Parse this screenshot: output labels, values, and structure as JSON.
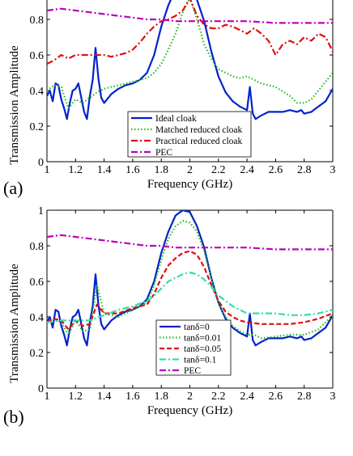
{
  "chart_data": [
    {
      "type": "line",
      "panel_label": "(a)",
      "xlabel": "Frequency (GHz)",
      "ylabel": "Transmission Amplitude",
      "xlim": [
        1,
        3
      ],
      "ylim": [
        0,
        1
      ],
      "xticks": [
        "1",
        "1.2",
        "1.4",
        "1.6",
        "1.8",
        "2",
        "2.2",
        "2.4",
        "2.6",
        "2.8",
        "3"
      ],
      "yticks": [
        "0",
        "0.2",
        "0.4",
        "0.6",
        "0.8"
      ],
      "legend_position": "bottom-center",
      "series": [
        {
          "name": "Ideal cloak",
          "color": "#0022cc",
          "style": "solid",
          "x": [
            1.0,
            1.02,
            1.04,
            1.06,
            1.08,
            1.1,
            1.12,
            1.14,
            1.16,
            1.18,
            1.2,
            1.22,
            1.24,
            1.26,
            1.28,
            1.3,
            1.32,
            1.34,
            1.36,
            1.38,
            1.4,
            1.45,
            1.5,
            1.55,
            1.6,
            1.65,
            1.7,
            1.75,
            1.8,
            1.85,
            1.9,
            1.95,
            2.0,
            2.05,
            2.1,
            2.15,
            2.2,
            2.25,
            2.3,
            2.35,
            2.4,
            2.42,
            2.44,
            2.46,
            2.48,
            2.5,
            2.55,
            2.6,
            2.65,
            2.7,
            2.75,
            2.78,
            2.8,
            2.85,
            2.9,
            2.95,
            3.0
          ],
          "y": [
            0.37,
            0.4,
            0.34,
            0.44,
            0.43,
            0.35,
            0.3,
            0.24,
            0.33,
            0.4,
            0.41,
            0.44,
            0.36,
            0.28,
            0.24,
            0.37,
            0.46,
            0.64,
            0.47,
            0.36,
            0.33,
            0.38,
            0.41,
            0.43,
            0.44,
            0.46,
            0.5,
            0.6,
            0.76,
            0.88,
            0.97,
            1.0,
            0.99,
            0.91,
            0.79,
            0.62,
            0.48,
            0.39,
            0.34,
            0.31,
            0.29,
            0.42,
            0.27,
            0.24,
            0.25,
            0.26,
            0.28,
            0.28,
            0.28,
            0.29,
            0.28,
            0.29,
            0.27,
            0.28,
            0.31,
            0.34,
            0.41
          ]
        },
        {
          "name": "Matched reduced cloak",
          "color": "#22bb22",
          "style": "dotted",
          "x": [
            1.0,
            1.05,
            1.1,
            1.15,
            1.2,
            1.25,
            1.3,
            1.35,
            1.4,
            1.5,
            1.6,
            1.7,
            1.75,
            1.8,
            1.85,
            1.9,
            1.95,
            2.0,
            2.05,
            2.1,
            2.15,
            2.2,
            2.25,
            2.3,
            2.35,
            2.4,
            2.45,
            2.5,
            2.6,
            2.7,
            2.75,
            2.8,
            2.85,
            2.9,
            2.95,
            3.0
          ],
          "y": [
            0.4,
            0.43,
            0.42,
            0.3,
            0.35,
            0.33,
            0.36,
            0.39,
            0.41,
            0.43,
            0.45,
            0.47,
            0.5,
            0.55,
            0.63,
            0.72,
            0.84,
            0.92,
            0.8,
            0.66,
            0.58,
            0.52,
            0.5,
            0.48,
            0.47,
            0.48,
            0.46,
            0.44,
            0.42,
            0.37,
            0.33,
            0.33,
            0.35,
            0.4,
            0.45,
            0.5
          ]
        },
        {
          "name": "Practical reduced cloak",
          "color": "#dd1111",
          "style": "dashdot",
          "x": [
            1.0,
            1.05,
            1.1,
            1.15,
            1.2,
            1.25,
            1.3,
            1.35,
            1.4,
            1.45,
            1.5,
            1.55,
            1.6,
            1.65,
            1.7,
            1.75,
            1.8,
            1.85,
            1.9,
            1.95,
            2.0,
            2.05,
            2.1,
            2.15,
            2.2,
            2.25,
            2.3,
            2.35,
            2.4,
            2.45,
            2.5,
            2.55,
            2.6,
            2.65,
            2.7,
            2.75,
            2.8,
            2.85,
            2.9,
            2.95,
            3.0
          ],
          "y": [
            0.55,
            0.57,
            0.6,
            0.58,
            0.6,
            0.6,
            0.6,
            0.6,
            0.6,
            0.59,
            0.6,
            0.61,
            0.63,
            0.67,
            0.72,
            0.76,
            0.79,
            0.8,
            0.82,
            0.85,
            0.92,
            0.82,
            0.77,
            0.75,
            0.75,
            0.77,
            0.76,
            0.74,
            0.72,
            0.75,
            0.72,
            0.68,
            0.6,
            0.66,
            0.68,
            0.66,
            0.7,
            0.68,
            0.72,
            0.7,
            0.62
          ]
        },
        {
          "name": "PEC",
          "color": "#bb00bb",
          "style": "dashdot",
          "x": [
            1.0,
            1.1,
            1.2,
            1.3,
            1.4,
            1.5,
            1.6,
            1.7,
            1.8,
            1.9,
            2.0,
            2.2,
            2.4,
            2.6,
            2.8,
            3.0
          ],
          "y": [
            0.85,
            0.86,
            0.85,
            0.84,
            0.83,
            0.82,
            0.81,
            0.8,
            0.8,
            0.79,
            0.79,
            0.79,
            0.79,
            0.78,
            0.78,
            0.78
          ]
        }
      ]
    },
    {
      "type": "line",
      "panel_label": "(b)",
      "xlabel": "Frequency (GHz)",
      "ylabel": "Transmission Amplitude",
      "xlim": [
        1,
        3
      ],
      "ylim": [
        0,
        1
      ],
      "xticks": [
        "1",
        "1.2",
        "1.4",
        "1.6",
        "1.8",
        "2",
        "2.2",
        "2.4",
        "2.6",
        "2.8",
        "3"
      ],
      "yticks": [
        "0",
        "0.2",
        "0.4",
        "0.6",
        "0.8",
        "1"
      ],
      "legend_position": "bottom-center",
      "series": [
        {
          "name": "tanδ=0",
          "color": "#0022cc",
          "style": "solid",
          "x": [
            1.0,
            1.02,
            1.04,
            1.06,
            1.08,
            1.1,
            1.12,
            1.14,
            1.16,
            1.18,
            1.2,
            1.22,
            1.24,
            1.26,
            1.28,
            1.3,
            1.32,
            1.34,
            1.36,
            1.38,
            1.4,
            1.45,
            1.5,
            1.55,
            1.6,
            1.65,
            1.7,
            1.75,
            1.8,
            1.85,
            1.9,
            1.95,
            2.0,
            2.05,
            2.1,
            2.15,
            2.2,
            2.25,
            2.3,
            2.35,
            2.4,
            2.42,
            2.44,
            2.46,
            2.48,
            2.5,
            2.55,
            2.6,
            2.65,
            2.7,
            2.75,
            2.78,
            2.8,
            2.85,
            2.9,
            2.95,
            3.0
          ],
          "y": [
            0.37,
            0.4,
            0.34,
            0.44,
            0.43,
            0.35,
            0.3,
            0.24,
            0.33,
            0.4,
            0.41,
            0.44,
            0.36,
            0.28,
            0.24,
            0.37,
            0.46,
            0.64,
            0.47,
            0.36,
            0.33,
            0.38,
            0.41,
            0.43,
            0.44,
            0.46,
            0.5,
            0.6,
            0.76,
            0.88,
            0.97,
            1.0,
            0.99,
            0.91,
            0.79,
            0.62,
            0.48,
            0.39,
            0.34,
            0.31,
            0.29,
            0.42,
            0.27,
            0.24,
            0.25,
            0.26,
            0.28,
            0.28,
            0.28,
            0.29,
            0.28,
            0.29,
            0.27,
            0.28,
            0.31,
            0.34,
            0.41
          ]
        },
        {
          "name": "tanδ=0.01",
          "color": "#22bb22",
          "style": "dotted",
          "x": [
            1.0,
            1.05,
            1.1,
            1.15,
            1.2,
            1.25,
            1.3,
            1.35,
            1.4,
            1.5,
            1.6,
            1.7,
            1.75,
            1.8,
            1.85,
            1.9,
            1.95,
            2.0,
            2.05,
            2.1,
            2.15,
            2.2,
            2.25,
            2.3,
            2.35,
            2.4,
            2.45,
            2.5,
            2.6,
            2.7,
            2.8,
            2.9,
            3.0
          ],
          "y": [
            0.37,
            0.39,
            0.37,
            0.3,
            0.38,
            0.32,
            0.33,
            0.58,
            0.42,
            0.4,
            0.44,
            0.48,
            0.58,
            0.72,
            0.84,
            0.91,
            0.94,
            0.93,
            0.88,
            0.77,
            0.62,
            0.48,
            0.4,
            0.35,
            0.32,
            0.3,
            0.3,
            0.28,
            0.29,
            0.3,
            0.3,
            0.33,
            0.41
          ]
        },
        {
          "name": "tanδ=0.05",
          "color": "#dd1111",
          "style": "dashed",
          "x": [
            1.0,
            1.05,
            1.1,
            1.15,
            1.2,
            1.25,
            1.3,
            1.35,
            1.4,
            1.5,
            1.6,
            1.7,
            1.75,
            1.8,
            1.85,
            1.9,
            1.95,
            2.0,
            2.05,
            2.1,
            2.15,
            2.2,
            2.25,
            2.3,
            2.35,
            2.4,
            2.5,
            2.6,
            2.7,
            2.8,
            2.9,
            3.0
          ],
          "y": [
            0.37,
            0.39,
            0.38,
            0.33,
            0.38,
            0.35,
            0.36,
            0.47,
            0.42,
            0.42,
            0.45,
            0.47,
            0.53,
            0.62,
            0.69,
            0.73,
            0.76,
            0.77,
            0.75,
            0.68,
            0.58,
            0.49,
            0.43,
            0.4,
            0.38,
            0.37,
            0.36,
            0.36,
            0.36,
            0.37,
            0.39,
            0.42
          ]
        },
        {
          "name": "tanδ=0.1",
          "color": "#33ddaa",
          "style": "dashdot",
          "x": [
            1.0,
            1.1,
            1.2,
            1.3,
            1.4,
            1.5,
            1.6,
            1.7,
            1.75,
            1.8,
            1.85,
            1.9,
            1.95,
            2.0,
            2.05,
            2.1,
            2.15,
            2.2,
            2.3,
            2.4,
            2.5,
            2.6,
            2.7,
            2.8,
            2.9,
            3.0
          ],
          "y": [
            0.37,
            0.38,
            0.38,
            0.38,
            0.41,
            0.44,
            0.46,
            0.49,
            0.52,
            0.56,
            0.6,
            0.62,
            0.64,
            0.65,
            0.64,
            0.61,
            0.57,
            0.52,
            0.46,
            0.42,
            0.42,
            0.42,
            0.41,
            0.41,
            0.42,
            0.44
          ]
        },
        {
          "name": "PEC",
          "color": "#bb00bb",
          "style": "dashdot",
          "x": [
            1.0,
            1.1,
            1.2,
            1.3,
            1.4,
            1.5,
            1.6,
            1.7,
            1.8,
            1.9,
            2.0,
            2.2,
            2.4,
            2.6,
            2.8,
            3.0
          ],
          "y": [
            0.85,
            0.86,
            0.85,
            0.84,
            0.83,
            0.82,
            0.81,
            0.8,
            0.8,
            0.79,
            0.79,
            0.79,
            0.79,
            0.78,
            0.78,
            0.78
          ]
        }
      ]
    }
  ]
}
